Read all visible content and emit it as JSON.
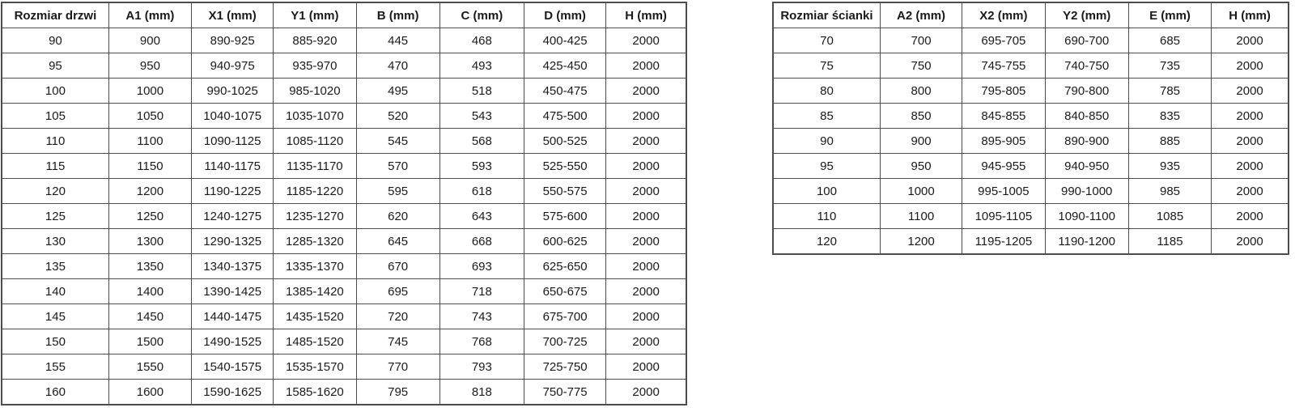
{
  "door_table": {
    "name": "door-size-table",
    "headers": [
      "Rozmiar drzwi",
      "A1 (mm)",
      "X1 (mm)",
      "Y1 (mm)",
      "B (mm)",
      "C (mm)",
      "D (mm)",
      "H (mm)"
    ],
    "rows": [
      [
        "90",
        "900",
        "890-925",
        "885-920",
        "445",
        "468",
        "400-425",
        "2000"
      ],
      [
        "95",
        "950",
        "940-975",
        "935-970",
        "470",
        "493",
        "425-450",
        "2000"
      ],
      [
        "100",
        "1000",
        "990-1025",
        "985-1020",
        "495",
        "518",
        "450-475",
        "2000"
      ],
      [
        "105",
        "1050",
        "1040-1075",
        "1035-1070",
        "520",
        "543",
        "475-500",
        "2000"
      ],
      [
        "110",
        "1100",
        "1090-1125",
        "1085-1120",
        "545",
        "568",
        "500-525",
        "2000"
      ],
      [
        "115",
        "1150",
        "1140-1175",
        "1135-1170",
        "570",
        "593",
        "525-550",
        "2000"
      ],
      [
        "120",
        "1200",
        "1190-1225",
        "1185-1220",
        "595",
        "618",
        "550-575",
        "2000"
      ],
      [
        "125",
        "1250",
        "1240-1275",
        "1235-1270",
        "620",
        "643",
        "575-600",
        "2000"
      ],
      [
        "130",
        "1300",
        "1290-1325",
        "1285-1320",
        "645",
        "668",
        "600-625",
        "2000"
      ],
      [
        "135",
        "1350",
        "1340-1375",
        "1335-1370",
        "670",
        "693",
        "625-650",
        "2000"
      ],
      [
        "140",
        "1400",
        "1390-1425",
        "1385-1420",
        "695",
        "718",
        "650-675",
        "2000"
      ],
      [
        "145",
        "1450",
        "1440-1475",
        "1435-1520",
        "720",
        "743",
        "675-700",
        "2000"
      ],
      [
        "150",
        "1500",
        "1490-1525",
        "1485-1520",
        "745",
        "768",
        "700-725",
        "2000"
      ],
      [
        "155",
        "1550",
        "1540-1575",
        "1535-1570",
        "770",
        "793",
        "725-750",
        "2000"
      ],
      [
        "160",
        "1600",
        "1590-1625",
        "1585-1620",
        "795",
        "818",
        "750-775",
        "2000"
      ]
    ]
  },
  "wall_table": {
    "name": "wall-size-table",
    "headers": [
      "Rozmiar ścianki",
      "A2 (mm)",
      "X2 (mm)",
      "Y2 (mm)",
      "E (mm)",
      "H (mm)"
    ],
    "rows": [
      [
        "70",
        "700",
        "695-705",
        "690-700",
        "685",
        "2000"
      ],
      [
        "75",
        "750",
        "745-755",
        "740-750",
        "735",
        "2000"
      ],
      [
        "80",
        "800",
        "795-805",
        "790-800",
        "785",
        "2000"
      ],
      [
        "85",
        "850",
        "845-855",
        "840-850",
        "835",
        "2000"
      ],
      [
        "90",
        "900",
        "895-905",
        "890-900",
        "885",
        "2000"
      ],
      [
        "95",
        "950",
        "945-955",
        "940-950",
        "935",
        "2000"
      ],
      [
        "100",
        "1000",
        "995-1005",
        "990-1000",
        "985",
        "2000"
      ],
      [
        "110",
        "1100",
        "1095-1105",
        "1090-1100",
        "1085",
        "2000"
      ],
      [
        "120",
        "1200",
        "1195-1205",
        "1190-1200",
        "1185",
        "2000"
      ]
    ]
  },
  "colors": {
    "border": "#4d4d4d",
    "text": "#1a1a1a",
    "background": "#ffffff"
  }
}
